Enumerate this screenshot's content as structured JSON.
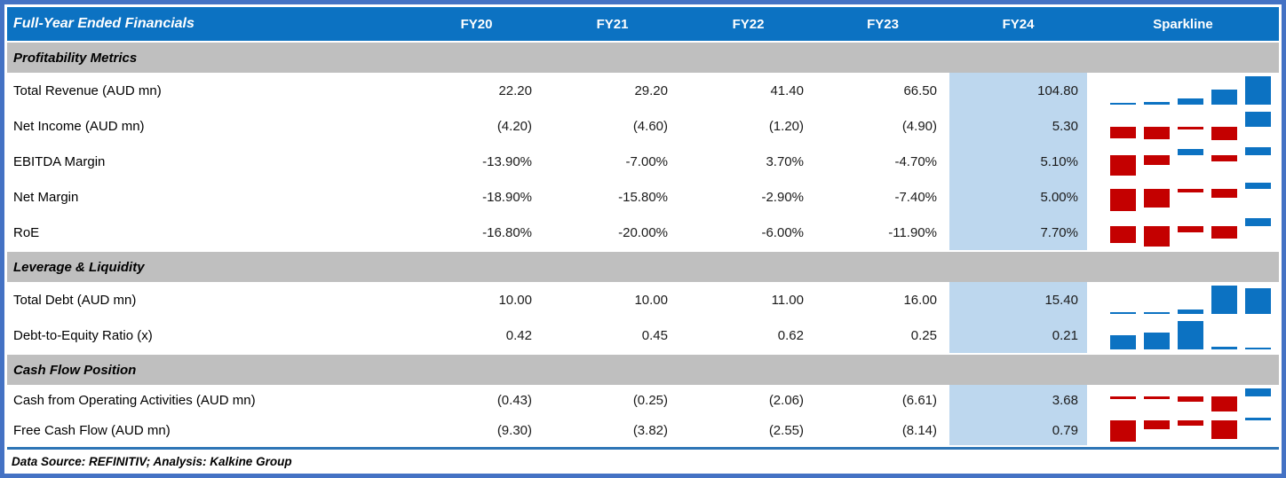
{
  "title": "Full-Year Ended Financials",
  "header": {
    "columns": [
      "FY20",
      "FY21",
      "FY22",
      "FY23",
      "FY24"
    ],
    "sparkline_label": "Sparkline"
  },
  "footer": {
    "text": "Data Source: REFINITIV; Analysis: Kalkine Group"
  },
  "colors": {
    "header_bg": "#0C72C2",
    "header_text": "#FFFFFF",
    "section_bg": "#BFBFBF",
    "fy24_highlight": "#BDD7EE",
    "sparkline_positive": "#0C72C2",
    "sparkline_negative": "#C40000",
    "outer_border": "#4472C4",
    "footer_rule": "#2E75B6"
  },
  "chart_data": {
    "type": "table",
    "title": "Full-Year Ended Financials",
    "categories": [
      "FY20",
      "FY21",
      "FY22",
      "FY23",
      "FY24"
    ],
    "highlight_column": "FY24",
    "sparkline_type": "column",
    "sparkline_colors": {
      "positive": "#0C72C2",
      "negative": "#C40000"
    },
    "sections": [
      {
        "title": "Profitability Metrics",
        "rows": [
          {
            "label": "Total Revenue (AUD mn)",
            "display": [
              "22.20",
              "29.20",
              "41.40",
              "66.50",
              "104.80"
            ],
            "values": [
              22.2,
              29.2,
              41.4,
              66.5,
              104.8
            ]
          },
          {
            "label": "Net Income (AUD mn)",
            "display": [
              "(4.20)",
              "(4.60)",
              "(1.20)",
              "(4.90)",
              "5.30"
            ],
            "values": [
              -4.2,
              -4.6,
              -1.2,
              -4.9,
              5.3
            ]
          },
          {
            "label": "EBITDA Margin",
            "display": [
              "-13.90%",
              "-7.00%",
              "3.70%",
              "-4.70%",
              "5.10%"
            ],
            "values": [
              -13.9,
              -7.0,
              3.7,
              -4.7,
              5.1
            ]
          },
          {
            "label": "Net Margin",
            "display": [
              "-18.90%",
              "-15.80%",
              "-2.90%",
              "-7.40%",
              "5.00%"
            ],
            "values": [
              -18.9,
              -15.8,
              -2.9,
              -7.4,
              5.0
            ]
          },
          {
            "label": "RoE",
            "display": [
              "-16.80%",
              "-20.00%",
              "-6.00%",
              "-11.90%",
              "7.70%"
            ],
            "values": [
              -16.8,
              -20.0,
              -6.0,
              -11.9,
              7.7
            ]
          }
        ]
      },
      {
        "title": "Leverage & Liquidity",
        "rows": [
          {
            "label": "Total Debt (AUD mn)",
            "display": [
              "10.00",
              "10.00",
              "11.00",
              "16.00",
              "15.40"
            ],
            "values": [
              10.0,
              10.0,
              11.0,
              16.0,
              15.4
            ]
          },
          {
            "label": "Debt-to-Equity Ratio (x)",
            "display": [
              "0.42",
              "0.45",
              "0.62",
              "0.25",
              "0.21"
            ],
            "values": [
              0.42,
              0.45,
              0.62,
              0.25,
              0.21
            ]
          }
        ]
      },
      {
        "title": "Cash Flow Position",
        "rows": [
          {
            "label": "Cash from Operating Activities (AUD mn)",
            "display": [
              "(0.43)",
              "(0.25)",
              "(2.06)",
              "(6.61)",
              "3.68"
            ],
            "values": [
              -0.43,
              -0.25,
              -2.06,
              -6.61,
              3.68
            ]
          },
          {
            "label": "Free Cash Flow (AUD mn)",
            "display": [
              "(9.30)",
              "(3.82)",
              "(2.55)",
              "(8.14)",
              "0.79"
            ],
            "values": [
              -9.3,
              -3.82,
              -2.55,
              -8.14,
              0.79
            ]
          }
        ]
      }
    ]
  }
}
